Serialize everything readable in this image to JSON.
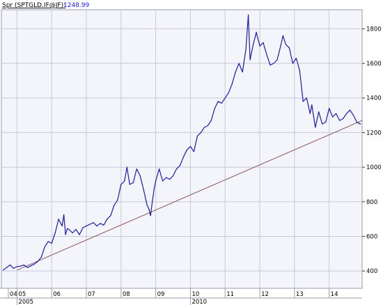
{
  "header": {
    "symbol": "Spr (SPTGLD.IF@JF):",
    "last_value": "1248.99"
  },
  "colors": {
    "plot_bg": "#f4f4fb",
    "grid": "#c8c8d8",
    "price_line": "#1a1ab5",
    "trend_line": "#8a5a5a",
    "header_value": "#1a1aff"
  },
  "chart_data": {
    "type": "line",
    "title": "",
    "xlabel": "",
    "ylabel": "",
    "ylim": [
      300,
      1910
    ],
    "xlim": [
      2004.55,
      2014.95
    ],
    "y_ticks": [
      400,
      600,
      800,
      1000,
      1200,
      1400,
      1600,
      1800
    ],
    "x_ticks": [
      {
        "x": 2004.75,
        "label": "04"
      },
      {
        "x": 2005.0,
        "label": "05"
      },
      {
        "x": 2006.0,
        "label": "06"
      },
      {
        "x": 2007.0,
        "label": "07"
      },
      {
        "x": 2008.0,
        "label": "08"
      },
      {
        "x": 2009.0,
        "label": "09"
      },
      {
        "x": 2010.0,
        "label": "10"
      },
      {
        "x": 2011.0,
        "label": "11"
      },
      {
        "x": 2012.0,
        "label": "12"
      },
      {
        "x": 2013.0,
        "label": "13"
      },
      {
        "x": 2014.0,
        "label": "14"
      }
    ],
    "x_year_labels": [
      {
        "x": 2005.0,
        "label": "2005"
      },
      {
        "x": 2010.0,
        "label": "2010"
      }
    ],
    "grid": true,
    "series": [
      {
        "role": "price",
        "x": [
          2004.6,
          2004.7,
          2004.8,
          2004.9,
          2005.0,
          2005.1,
          2005.2,
          2005.3,
          2005.4,
          2005.5,
          2005.6,
          2005.7,
          2005.8,
          2005.9,
          2006.0,
          2006.1,
          2006.2,
          2006.3,
          2006.35,
          2006.4,
          2006.45,
          2006.5,
          2006.6,
          2006.7,
          2006.8,
          2006.9,
          2007.0,
          2007.1,
          2007.2,
          2007.3,
          2007.4,
          2007.5,
          2007.6,
          2007.7,
          2007.8,
          2007.9,
          2008.0,
          2008.1,
          2008.17,
          2008.25,
          2008.35,
          2008.45,
          2008.55,
          2008.65,
          2008.75,
          2008.8,
          2008.85,
          2008.9,
          2008.95,
          2009.0,
          2009.1,
          2009.2,
          2009.3,
          2009.4,
          2009.5,
          2009.6,
          2009.7,
          2009.8,
          2009.9,
          2010.0,
          2010.1,
          2010.2,
          2010.3,
          2010.4,
          2010.5,
          2010.6,
          2010.7,
          2010.8,
          2010.9,
          2011.0,
          2011.1,
          2011.2,
          2011.3,
          2011.4,
          2011.5,
          2011.6,
          2011.67,
          2011.72,
          2011.8,
          2011.9,
          2012.0,
          2012.1,
          2012.2,
          2012.3,
          2012.4,
          2012.5,
          2012.6,
          2012.67,
          2012.75,
          2012.85,
          2012.95,
          2013.05,
          2013.15,
          2013.25,
          2013.35,
          2013.45,
          2013.5,
          2013.6,
          2013.7,
          2013.8,
          2013.9,
          2014.0,
          2014.1,
          2014.2,
          2014.3,
          2014.4,
          2014.5,
          2014.6,
          2014.7,
          2014.8,
          2014.9
        ],
        "y": [
          405,
          420,
          435,
          415,
          425,
          428,
          435,
          420,
          430,
          440,
          455,
          480,
          540,
          570,
          560,
          620,
          700,
          660,
          725,
          610,
          645,
          640,
          620,
          640,
          610,
          650,
          660,
          670,
          680,
          660,
          675,
          665,
          700,
          720,
          780,
          810,
          900,
          920,
          1000,
          900,
          910,
          990,
          950,
          870,
          780,
          760,
          720,
          800,
          870,
          920,
          990,
          920,
          940,
          930,
          950,
          990,
          1010,
          1060,
          1100,
          1120,
          1090,
          1180,
          1200,
          1230,
          1240,
          1270,
          1340,
          1380,
          1370,
          1400,
          1430,
          1480,
          1550,
          1600,
          1550,
          1680,
          1880,
          1620,
          1700,
          1780,
          1700,
          1720,
          1650,
          1590,
          1600,
          1620,
          1700,
          1760,
          1710,
          1690,
          1600,
          1630,
          1560,
          1380,
          1400,
          1310,
          1360,
          1230,
          1320,
          1250,
          1260,
          1340,
          1290,
          1310,
          1270,
          1280,
          1310,
          1330,
          1300,
          1260,
          1249
        ]
      },
      {
        "role": "trend",
        "x": [
          2005.0,
          2014.95
        ],
        "y": [
          405,
          1270
        ]
      }
    ]
  }
}
